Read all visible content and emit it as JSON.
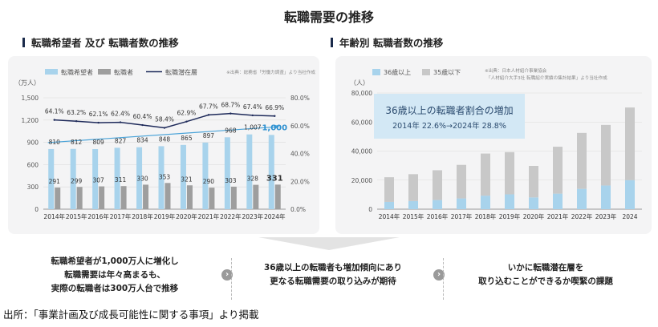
{
  "page": {
    "title": "転職需要の推移",
    "left_section_title": "転職希望者 及び 転職者数の推移",
    "right_section_title": "年齢別 転職者数の推移",
    "summaries": [
      [
        "転職希望者が1,000万人に増化し",
        "転職需要は年々高まるも、",
        "実際の転職者は300万人台で推移"
      ],
      [
        "36歳以上の転職者も増加傾向にあり",
        "更なる転職需要の取り込みが期待"
      ],
      [
        "いかに転職潜在層を",
        "取り込むことができるか喫緊の課題"
      ]
    ],
    "chevron": "›",
    "source": "出所：「事業計画及び成長可能性に関する事項」より掲載"
  },
  "chart_data": [
    {
      "type": "bar",
      "title": "転職希望者 及び 転職者数の推移",
      "source_note": "※出典：総務省「労働力調査」より当社作成",
      "categories": [
        "2014年",
        "2015年",
        "2016年",
        "2017年",
        "2018年",
        "2019年",
        "2020年",
        "2021年",
        "2022年",
        "2023年",
        "2024年"
      ],
      "series": [
        {
          "name": "転職希望者",
          "kind": "bar",
          "axis": "left",
          "color": "#a8d3ec",
          "values": [
            810,
            812,
            809,
            827,
            834,
            848,
            865,
            897,
            968,
            1007,
            1000
          ],
          "labels": [
            "810",
            "812",
            "809",
            "827",
            "834",
            "848",
            "865",
            "897",
            "968",
            "1,007",
            "1,000"
          ]
        },
        {
          "name": "転職者",
          "kind": "bar",
          "axis": "left",
          "color": "#9e9e9e",
          "values": [
            291,
            299,
            307,
            311,
            330,
            353,
            321,
            290,
            303,
            328,
            331
          ],
          "labels": [
            "291",
            "299",
            "307",
            "311",
            "330",
            "353",
            "321",
            "290",
            "303",
            "328",
            "331"
          ]
        },
        {
          "name": "転職潜在層",
          "kind": "line",
          "axis": "right",
          "color": "#1e2a5a",
          "values": [
            64.1,
            63.2,
            62.1,
            62.4,
            60.4,
            58.4,
            62.9,
            67.7,
            68.7,
            67.4,
            66.9
          ],
          "labels": [
            "64.1%",
            "63.2%",
            "62.1%",
            "62.4%",
            "60.4%",
            "58.4%",
            "62.9%",
            "67.7%",
            "68.7%",
            "67.4%",
            "66.9%"
          ]
        }
      ],
      "trend": {
        "from": 810,
        "to": 1000,
        "color": "#4aa3d8"
      },
      "y_unit": "（万人）",
      "ylim": [
        0,
        1500
      ],
      "yticks": [
        0,
        300,
        600,
        900,
        1200,
        1500
      ],
      "ytick_labels": [
        "0",
        "300",
        "600",
        "900",
        "1,200",
        "1,500"
      ],
      "y2lim": [
        0,
        80
      ],
      "y2ticks": [
        0,
        20,
        40,
        60,
        80
      ],
      "y2tick_labels": [
        "0.0%",
        "20.0%",
        "40.0%",
        "60.0%",
        "80.0%"
      ]
    },
    {
      "type": "bar",
      "stacked": true,
      "title": "年齢別 転職者数の推移",
      "source_note": [
        "※出典：日本人材紹介事業協会",
        "「人材紹介大手3社 転職紹介実績の集計結果」より当社作成"
      ],
      "callout": {
        "title": "36歳以上の転職者割合の増加",
        "text": "2014年 22.6%→2024年 28.8%"
      },
      "categories": [
        "2014年",
        "2015年",
        "2016年",
        "2017年",
        "2018年",
        "2019年",
        "2020年",
        "2021年",
        "2022年",
        "2023年",
        "2024"
      ],
      "series": [
        {
          "name": "36歳以上",
          "color": "#a8d3ec",
          "values": [
            5000,
            5600,
            6300,
            7400,
            9300,
            10200,
            8100,
            10700,
            14000,
            16300,
            20000
          ]
        },
        {
          "name": "35歳以下",
          "color": "#c8c8c8",
          "values": [
            17000,
            18500,
            20500,
            23100,
            29000,
            29100,
            21700,
            32300,
            38500,
            41700,
            50000
          ]
        }
      ],
      "y_unit": "（人）",
      "ylim": [
        0,
        80000
      ],
      "yticks": [
        0,
        20000,
        40000,
        60000,
        80000
      ],
      "ytick_labels": [
        "0",
        "20,000",
        "40,000",
        "60,000",
        "80,000"
      ]
    }
  ]
}
